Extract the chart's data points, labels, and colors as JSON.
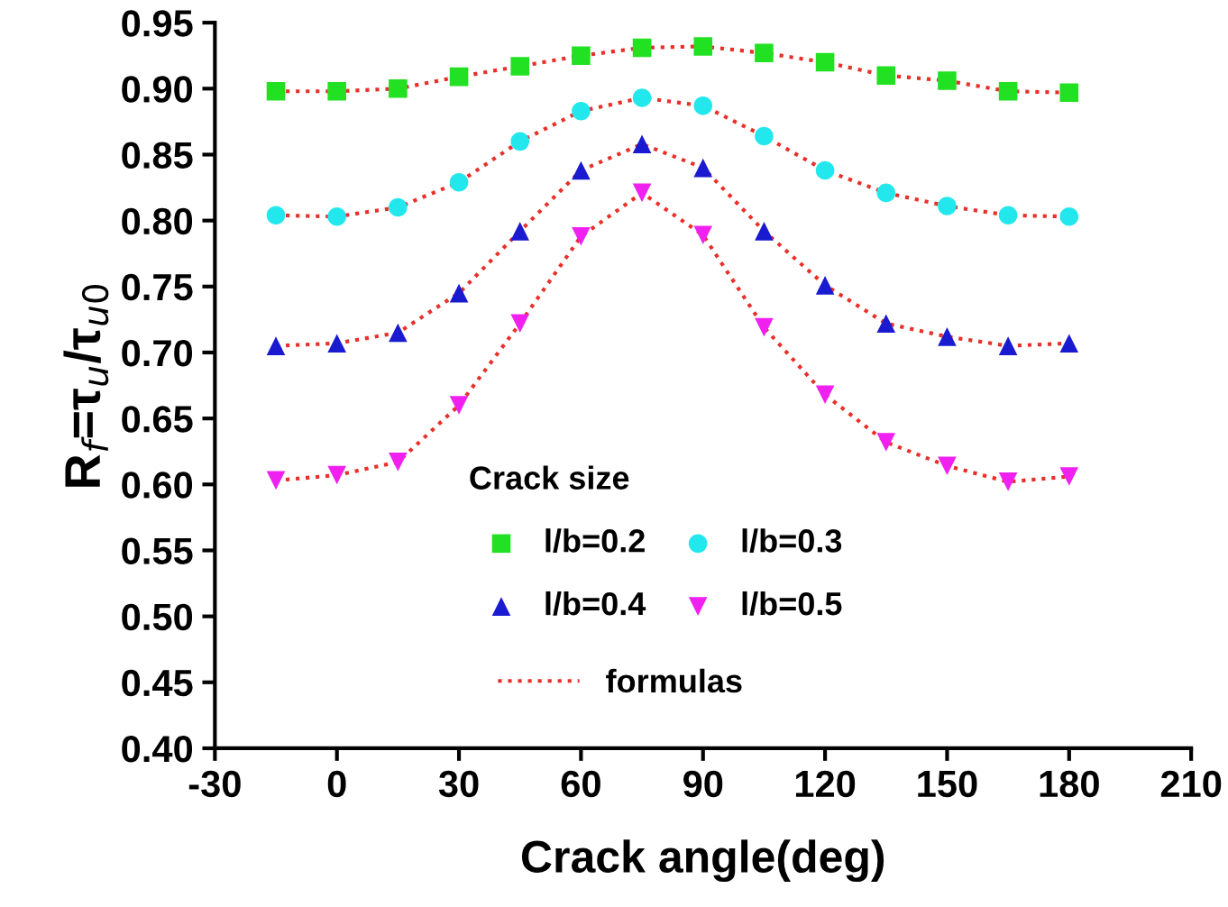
{
  "chart_data": {
    "type": "scatter",
    "xlabel": "Crack angle(deg)",
    "ylabel": "R$_{f}$=τ$_{u}$/τ$_{u0}$",
    "legend_title": "Crack size",
    "legend": "bottom",
    "grid": false,
    "x": [
      -15,
      0,
      15,
      30,
      45,
      60,
      75,
      90,
      105,
      120,
      135,
      150,
      165,
      180
    ],
    "xlim": [
      -30,
      210
    ],
    "xticks": [
      -30,
      0,
      30,
      60,
      90,
      120,
      150,
      180,
      210
    ],
    "ylim": [
      0.4,
      0.95
    ],
    "yticks": [
      {
        "value": 0.4,
        "label": "0.40"
      },
      {
        "value": 0.45,
        "label": "0.45"
      },
      {
        "value": 0.5,
        "label": "0.50"
      },
      {
        "value": 0.55,
        "label": "0.55"
      },
      {
        "value": 0.6,
        "label": "0.60"
      },
      {
        "value": 0.65,
        "label": "0.65"
      },
      {
        "value": 0.7,
        "label": "0.70"
      },
      {
        "value": 0.75,
        "label": "0.75"
      },
      {
        "value": 0.8,
        "label": "0.80"
      },
      {
        "value": 0.85,
        "label": "0.85"
      },
      {
        "value": 0.9,
        "label": "0.90"
      },
      {
        "value": 0.95,
        "label": "0.95"
      }
    ],
    "series": [
      {
        "type": "line",
        "name": "formulas",
        "color": "#e8302a",
        "line_style": "dotted",
        "marker": "none",
        "values": [
          0.898,
          0.898,
          0.9,
          0.909,
          0.917,
          0.925,
          0.931,
          0.932,
          0.927,
          0.92,
          0.91,
          0.906,
          0.898,
          0.897
        ]
      },
      {
        "type": "line",
        "color": "#e8302a",
        "line_style": "dotted",
        "marker": "none",
        "values": [
          0.804,
          0.803,
          0.81,
          0.829,
          0.86,
          0.883,
          0.893,
          0.887,
          0.864,
          0.838,
          0.821,
          0.811,
          0.804,
          0.803
        ]
      },
      {
        "type": "line",
        "color": "#e8302a",
        "line_style": "dotted",
        "marker": "none",
        "values": [
          0.705,
          0.707,
          0.715,
          0.745,
          0.792,
          0.838,
          0.858,
          0.84,
          0.792,
          0.751,
          0.722,
          0.712,
          0.705,
          0.707
        ]
      },
      {
        "type": "line",
        "color": "#e8302a",
        "line_style": "dotted",
        "marker": "none",
        "values": [
          0.603,
          0.607,
          0.617,
          0.66,
          0.722,
          0.788,
          0.821,
          0.789,
          0.719,
          0.668,
          0.632,
          0.614,
          0.602,
          0.606
        ]
      },
      {
        "name": "l/b=0.2",
        "color": "#22e022",
        "marker": "square",
        "values": [
          0.898,
          0.898,
          0.9,
          0.909,
          0.917,
          0.925,
          0.931,
          0.932,
          0.927,
          0.92,
          0.91,
          0.906,
          0.898,
          0.897
        ]
      },
      {
        "name": "l/b=0.3",
        "color": "#22e8ee",
        "marker": "circle",
        "values": [
          0.804,
          0.803,
          0.81,
          0.829,
          0.86,
          0.883,
          0.893,
          0.887,
          0.864,
          0.838,
          0.821,
          0.811,
          0.804,
          0.803
        ]
      },
      {
        "name": "l/b=0.4",
        "color": "#1a1ad0",
        "marker": "triangle",
        "values": [
          0.705,
          0.707,
          0.715,
          0.745,
          0.792,
          0.838,
          0.858,
          0.84,
          0.792,
          0.751,
          0.722,
          0.712,
          0.705,
          0.707
        ]
      },
      {
        "name": "l/b=0.5",
        "color": "#f020f0",
        "marker": "triangle_down",
        "values": [
          0.603,
          0.607,
          0.617,
          0.66,
          0.722,
          0.788,
          0.821,
          0.789,
          0.719,
          0.668,
          0.632,
          0.614,
          0.602,
          0.606
        ]
      }
    ]
  }
}
